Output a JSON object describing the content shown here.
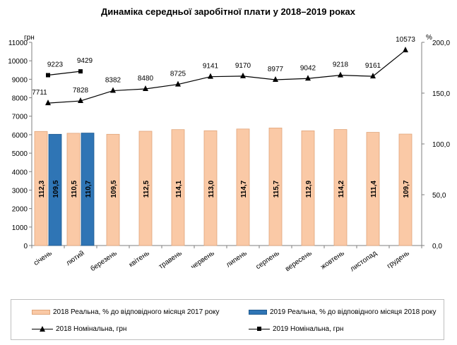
{
  "chart_data": {
    "type": "bar+line",
    "title": "Динаміка середньої заробітної плати у 2018–2019 роках",
    "left_axis_unit": "грн",
    "right_axis_unit": "%",
    "left_ticks": [
      "0",
      "1000",
      "2000",
      "3000",
      "4000",
      "5000",
      "6000",
      "7000",
      "8000",
      "9000",
      "10000",
      "11000"
    ],
    "right_ticks": [
      "0,0",
      "50,0",
      "100,0",
      "150,0",
      "200,0"
    ],
    "left_ylim": [
      0,
      11000
    ],
    "right_ylim": [
      0,
      200
    ],
    "categories": [
      "січень",
      "лютий",
      "березень",
      "квітень",
      "травень",
      "червень",
      "липень",
      "серпень",
      "вересень",
      "жовтень",
      "листопад",
      "грудень"
    ],
    "bar_series": [
      {
        "name": "2018 Реальна, % до відповідного місяця 2017 року",
        "color": "#fac9a6",
        "border": "#e0a57a",
        "values": [
          112.3,
          110.5,
          109.5,
          112.5,
          114.1,
          113.0,
          114.7,
          115.7,
          112.9,
          114.2,
          111.4,
          109.7
        ],
        "labels": [
          "112,3",
          "110,5",
          "109,5",
          "112,5",
          "114,1",
          "113,0",
          "114,7",
          "115,7",
          "112,9",
          "114,2",
          "111,4",
          "109,7"
        ]
      },
      {
        "name": "2019 Реальна, % до відповідного місяця 2018 року",
        "color": "#2f75b5",
        "border": "#1f5a8f",
        "values": [
          109.5,
          110.7
        ],
        "labels": [
          "109,5",
          "110,7"
        ]
      }
    ],
    "line_series": [
      {
        "name": "2018 Номінальна, грн",
        "marker": "triangle",
        "values": [
          7711,
          7828,
          8382,
          8480,
          8725,
          9141,
          9170,
          8977,
          9042,
          9218,
          9161,
          10573
        ],
        "labels": [
          "7711",
          "7828",
          "8382",
          "8480",
          "8725",
          "9141",
          "9170",
          "8977",
          "9042",
          "9218",
          "9161",
          "10573"
        ]
      },
      {
        "name": "2019 Номінальна, грн",
        "marker": "square",
        "values": [
          9223,
          9429
        ],
        "labels": [
          "9223",
          "9429"
        ]
      }
    ],
    "legend_position": "bottom"
  }
}
